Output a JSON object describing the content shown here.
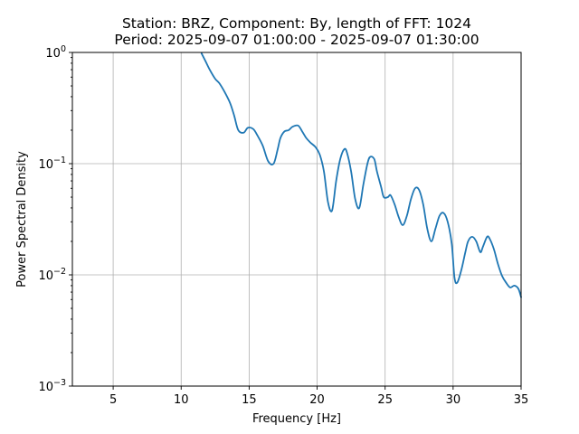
{
  "chart_data": {
    "type": "line",
    "title_line1": "Station: BRZ, Component: By, length of FFT: 1024",
    "title_line2": "Period: 2025-09-07 01:00:00 - 2025-09-07 01:30:00",
    "xlabel": "Frequency [Hz]",
    "ylabel": "Power Spectral Density",
    "xlim": [
      2,
      35
    ],
    "ylim": [
      0.001,
      1
    ],
    "yscale": "log",
    "grid": true,
    "line_color": "#1f77b4",
    "xticks": [
      5,
      10,
      15,
      20,
      25,
      30,
      35
    ],
    "xtick_labels": [
      "5",
      "10",
      "15",
      "20",
      "25",
      "30",
      "35"
    ],
    "yticks": [
      0.001,
      0.01,
      0.1,
      1
    ],
    "ytick_labels": [
      {
        "base": "10",
        "exp": "−3"
      },
      {
        "base": "10",
        "exp": "−2"
      },
      {
        "base": "10",
        "exp": "−1"
      },
      {
        "base": "10",
        "exp": "0"
      }
    ],
    "series": [
      {
        "x": [
          11.5,
          11.8,
          12.1,
          12.5,
          12.8,
          13.2,
          13.6,
          13.9,
          14.2,
          14.6,
          14.9,
          15.3,
          15.6,
          16.0,
          16.4,
          16.8,
          17.1,
          17.3,
          17.6,
          17.9,
          18.2,
          18.6,
          18.9,
          19.2,
          19.5,
          19.9,
          20.2,
          20.5,
          20.8,
          21.1,
          21.4,
          21.7,
          22.0,
          22.2,
          22.5,
          22.8,
          23.1,
          23.4,
          23.7,
          23.9,
          24.2,
          24.4,
          24.7,
          24.9,
          25.2,
          25.4,
          25.7,
          26.0,
          26.3,
          26.6,
          26.9,
          27.2,
          27.5,
          27.8,
          28.1,
          28.4,
          28.7,
          29.0,
          29.3,
          29.6,
          29.9,
          30.1,
          30.3,
          30.6,
          30.9,
          31.1,
          31.4,
          31.7,
          32.0,
          32.2,
          32.5,
          32.7,
          33.0,
          33.3,
          33.6,
          33.9,
          34.2,
          34.5,
          34.8,
          35.0
        ],
        "y": [
          0.98,
          0.83,
          0.7,
          0.58,
          0.53,
          0.44,
          0.35,
          0.27,
          0.2,
          0.19,
          0.21,
          0.205,
          0.18,
          0.145,
          0.105,
          0.1,
          0.135,
          0.17,
          0.195,
          0.2,
          0.215,
          0.22,
          0.195,
          0.17,
          0.155,
          0.14,
          0.12,
          0.085,
          0.045,
          0.038,
          0.07,
          0.11,
          0.135,
          0.125,
          0.085,
          0.048,
          0.04,
          0.065,
          0.1,
          0.115,
          0.11,
          0.085,
          0.062,
          0.05,
          0.05,
          0.052,
          0.043,
          0.033,
          0.028,
          0.034,
          0.048,
          0.06,
          0.058,
          0.043,
          0.026,
          0.02,
          0.026,
          0.034,
          0.036,
          0.03,
          0.019,
          0.0095,
          0.0085,
          0.011,
          0.016,
          0.02,
          0.022,
          0.02,
          0.016,
          0.018,
          0.022,
          0.021,
          0.017,
          0.0125,
          0.0098,
          0.0085,
          0.0077,
          0.008,
          0.0075,
          0.0063
        ]
      }
    ]
  }
}
